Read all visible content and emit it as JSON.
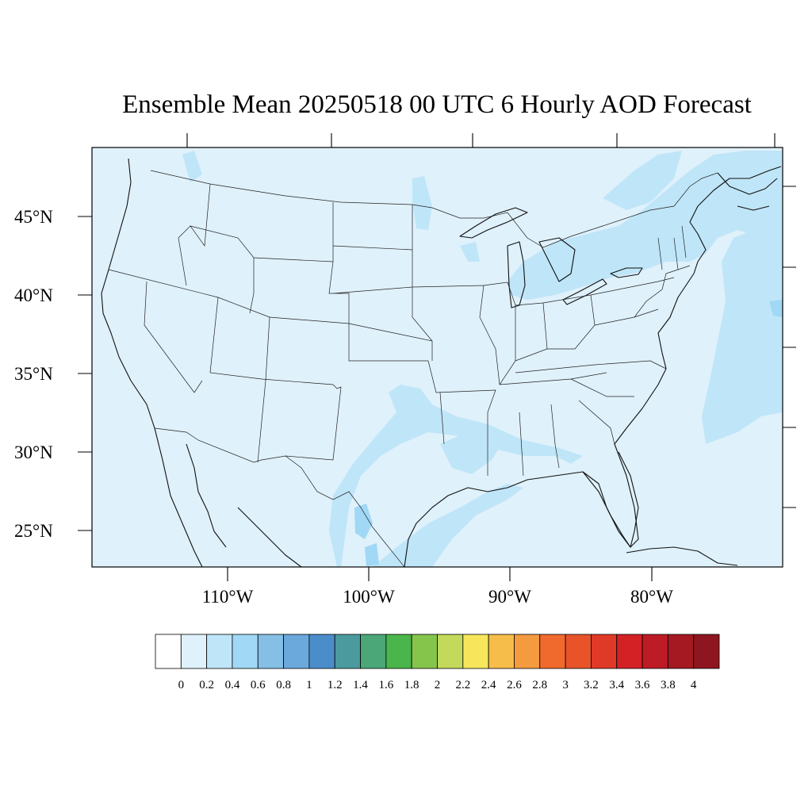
{
  "title": "Ensemble Mean 20250518 00 UTC 6 Hourly AOD Forecast",
  "map": {
    "lat_labels": [
      "45°N",
      "40°N",
      "35°N",
      "30°N",
      "25°N"
    ],
    "lon_labels": [
      "110°W",
      "100°W",
      "90°W",
      "80°W"
    ],
    "region": "Contiguous United States",
    "colors": {
      "land_ocean_base": "#dff1fb",
      "aod_0_2_to_0_4": "#bfe5f8",
      "aod_0_4_to_0_6": "#a0d8f5",
      "border": "#000000"
    }
  },
  "colorbar": {
    "labels": [
      "0",
      "0.2",
      "0.4",
      "0.6",
      "0.8",
      "1",
      "1.2",
      "1.4",
      "1.6",
      "1.8",
      "2",
      "2.2",
      "2.4",
      "2.6",
      "2.8",
      "3",
      "3.2",
      "3.4",
      "3.6",
      "3.8",
      "4"
    ],
    "colors": [
      "#ffffff",
      "#dff1fb",
      "#bfe5f8",
      "#a0d8f5",
      "#85bfe6",
      "#6ba8dc",
      "#4b8dcb",
      "#4b9b9e",
      "#4ba777",
      "#4ab54a",
      "#86c54b",
      "#c3d95a",
      "#f7e65c",
      "#f6bd4a",
      "#f49a3f",
      "#f16a2d",
      "#e8532a",
      "#df3a27",
      "#d42126",
      "#bd1b25",
      "#a51923",
      "#8e1620"
    ]
  }
}
